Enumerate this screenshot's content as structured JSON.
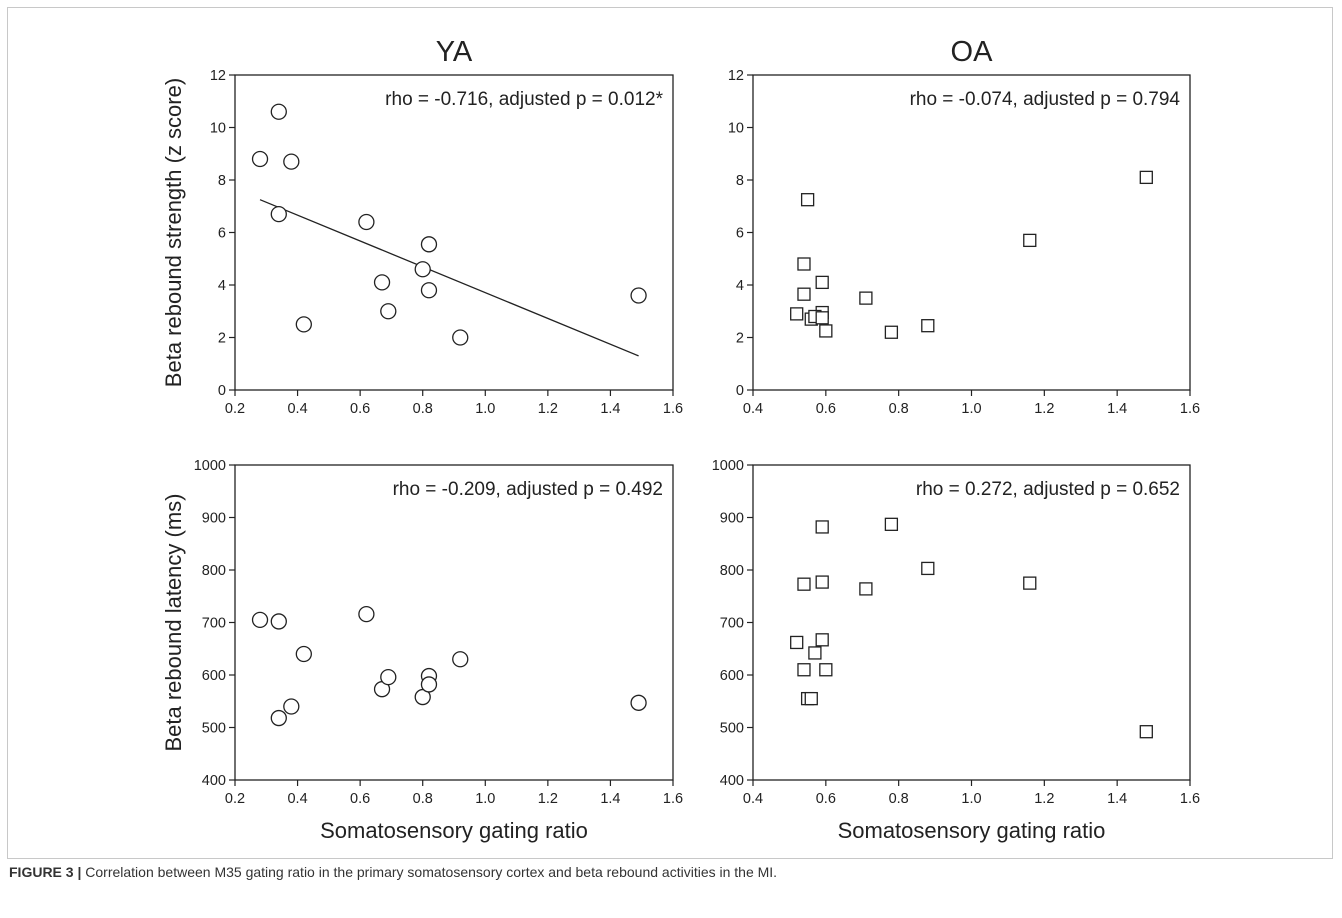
{
  "caption": {
    "label": "FIGURE 3 |",
    "text": " Correlation between M35 gating ratio in the primary somatosensory cortex and beta rebound activities in the MI."
  },
  "chart_data": [
    {
      "type": "scatter",
      "title": "YA",
      "xlabel": "",
      "ylabel": "Beta rebound strength (z score)",
      "xlim": [
        0.2,
        1.6
      ],
      "ylim": [
        0,
        12
      ],
      "xticks": [
        "0.2",
        "0.4",
        "0.6",
        "0.8",
        "1.0",
        "1.2",
        "1.4",
        "1.6"
      ],
      "yticks": [
        "0",
        "2",
        "4",
        "6",
        "8",
        "10",
        "12"
      ],
      "marker": "circle",
      "annotation": "rho = -0.716, adjusted p = 0.012*",
      "fit_line": {
        "x": [
          0.28,
          1.49
        ],
        "y": [
          7.25,
          1.3
        ]
      },
      "points": [
        {
          "x": 0.28,
          "y": 8.8
        },
        {
          "x": 0.34,
          "y": 10.6
        },
        {
          "x": 0.38,
          "y": 8.7
        },
        {
          "x": 0.34,
          "y": 6.7
        },
        {
          "x": 0.42,
          "y": 2.5
        },
        {
          "x": 0.62,
          "y": 6.4
        },
        {
          "x": 0.67,
          "y": 4.1
        },
        {
          "x": 0.69,
          "y": 3.0
        },
        {
          "x": 0.8,
          "y": 4.6
        },
        {
          "x": 0.82,
          "y": 5.55
        },
        {
          "x": 0.82,
          "y": 3.8
        },
        {
          "x": 0.92,
          "y": 2.0
        },
        {
          "x": 1.49,
          "y": 3.6
        }
      ]
    },
    {
      "type": "scatter",
      "title": "OA",
      "xlabel": "",
      "ylabel": "",
      "xlim": [
        0.4,
        1.6
      ],
      "ylim": [
        0,
        12
      ],
      "xticks": [
        "0.4",
        "0.6",
        "0.8",
        "1.0",
        "1.2",
        "1.4",
        "1.6"
      ],
      "yticks": [
        "0",
        "2",
        "4",
        "6",
        "8",
        "10",
        "12"
      ],
      "marker": "square",
      "annotation": "rho = -0.074, adjusted p = 0.794",
      "points": [
        {
          "x": 0.55,
          "y": 7.25
        },
        {
          "x": 0.54,
          "y": 4.8
        },
        {
          "x": 0.59,
          "y": 4.1
        },
        {
          "x": 0.54,
          "y": 3.65
        },
        {
          "x": 0.52,
          "y": 2.9
        },
        {
          "x": 0.59,
          "y": 2.95
        },
        {
          "x": 0.56,
          "y": 2.7
        },
        {
          "x": 0.57,
          "y": 2.8
        },
        {
          "x": 0.59,
          "y": 2.75
        },
        {
          "x": 0.6,
          "y": 2.25
        },
        {
          "x": 0.71,
          "y": 3.5
        },
        {
          "x": 0.78,
          "y": 2.2
        },
        {
          "x": 0.88,
          "y": 2.45
        },
        {
          "x": 1.16,
          "y": 5.7
        },
        {
          "x": 1.48,
          "y": 8.1
        }
      ]
    },
    {
      "type": "scatter",
      "title": "",
      "xlabel": "Somatosensory gating ratio",
      "ylabel": "Beta rebound latency (ms)",
      "xlim": [
        0.2,
        1.6
      ],
      "ylim": [
        400,
        1000
      ],
      "xticks": [
        "0.2",
        "0.4",
        "0.6",
        "0.8",
        "1.0",
        "1.2",
        "1.4",
        "1.6"
      ],
      "yticks": [
        "400",
        "500",
        "600",
        "700",
        "800",
        "900",
        "1000"
      ],
      "marker": "circle",
      "annotation": "rho = -0.209, adjusted p = 0.492",
      "points": [
        {
          "x": 0.28,
          "y": 705
        },
        {
          "x": 0.34,
          "y": 702
        },
        {
          "x": 0.42,
          "y": 640
        },
        {
          "x": 0.38,
          "y": 540
        },
        {
          "x": 0.34,
          "y": 518
        },
        {
          "x": 0.62,
          "y": 716
        },
        {
          "x": 0.67,
          "y": 573
        },
        {
          "x": 0.69,
          "y": 596
        },
        {
          "x": 0.8,
          "y": 558
        },
        {
          "x": 0.82,
          "y": 598
        },
        {
          "x": 0.82,
          "y": 582
        },
        {
          "x": 0.92,
          "y": 630
        },
        {
          "x": 1.49,
          "y": 547
        }
      ]
    },
    {
      "type": "scatter",
      "title": "",
      "xlabel": "Somatosensory gating ratio",
      "ylabel": "",
      "xlim": [
        0.4,
        1.6
      ],
      "ylim": [
        400,
        1000
      ],
      "xticks": [
        "0.4",
        "0.6",
        "0.8",
        "1.0",
        "1.2",
        "1.4",
        "1.6"
      ],
      "yticks": [
        "400",
        "500",
        "600",
        "700",
        "800",
        "900",
        "1000"
      ],
      "marker": "square",
      "annotation": "rho = 0.272, adjusted p = 0.652",
      "points": [
        {
          "x": 0.59,
          "y": 882
        },
        {
          "x": 0.78,
          "y": 887
        },
        {
          "x": 0.88,
          "y": 803
        },
        {
          "x": 0.54,
          "y": 773
        },
        {
          "x": 0.59,
          "y": 777
        },
        {
          "x": 0.71,
          "y": 764
        },
        {
          "x": 1.16,
          "y": 775
        },
        {
          "x": 0.52,
          "y": 662
        },
        {
          "x": 0.59,
          "y": 667
        },
        {
          "x": 0.57,
          "y": 642
        },
        {
          "x": 0.54,
          "y": 610
        },
        {
          "x": 0.6,
          "y": 610
        },
        {
          "x": 0.55,
          "y": 555
        },
        {
          "x": 0.56,
          "y": 555
        },
        {
          "x": 1.48,
          "y": 492
        }
      ]
    }
  ]
}
